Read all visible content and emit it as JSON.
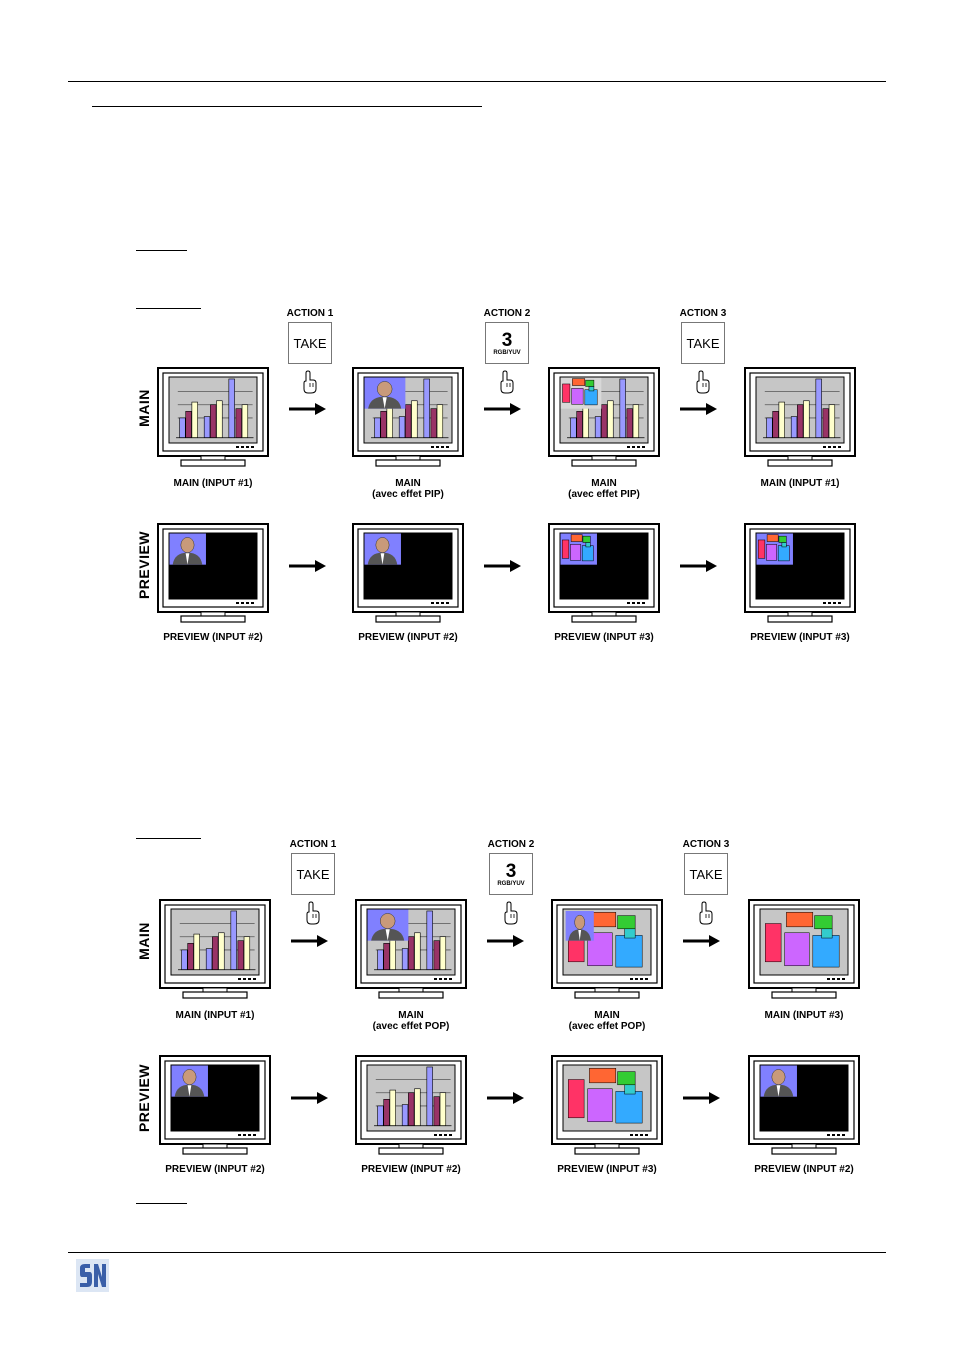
{
  "actions": {
    "action1": "ACTION 1",
    "action2": "ACTION 2",
    "action3": "ACTION 3",
    "take": "TAKE",
    "key3": "3",
    "key3_sub": "RGB/YUV"
  },
  "rows": {
    "main": "MAIN",
    "preview": "PREVIEW"
  },
  "pip": {
    "main_captions": [
      [
        "MAIN (INPUT #1)",
        ""
      ],
      [
        "MAIN",
        "(avec effet PIP)"
      ],
      [
        "MAIN",
        "(avec effet PIP)"
      ],
      [
        "MAIN (INPUT #1)",
        ""
      ]
    ],
    "preview_captions": [
      "PREVIEW (INPUT #2)",
      "PREVIEW (INPUT #2)",
      "PREVIEW (INPUT #3)",
      "PREVIEW (INPUT #3)"
    ],
    "main_screens": [
      "chart",
      "chart-person",
      "chart-machine",
      "chart"
    ],
    "preview_screens": [
      "black-person",
      "black-person",
      "black-machine",
      "black-machine"
    ]
  },
  "pop": {
    "main_captions": [
      [
        "MAIN (INPUT #1)",
        ""
      ],
      [
        "MAIN",
        "(avec effet POP)"
      ],
      [
        "MAIN",
        "(avec effet POP)"
      ],
      [
        "MAIN (INPUT #3)",
        ""
      ]
    ],
    "preview_captions": [
      "PREVIEW (INPUT #2)",
      "PREVIEW (INPUT #2)",
      "PREVIEW (INPUT #3)",
      "PREVIEW (INPUT #2)"
    ],
    "main_screens": [
      "chart",
      "chart-person",
      "person-machine",
      "machine"
    ],
    "preview_screens": [
      "black-person",
      "chart",
      "machine",
      "black-person"
    ]
  },
  "colors": {
    "screen_grey": "#c6c6c6",
    "bar_purple": "#9999ff",
    "bar_maroon": "#993366",
    "bar_cream": "#ffffcc",
    "photo_blue": "#8080ff",
    "logo_blue": "#3a5fa8"
  },
  "icons": [
    "pointing-hand-icon",
    "right-arrow-icon",
    "monitor-icon",
    "company-logo"
  ]
}
